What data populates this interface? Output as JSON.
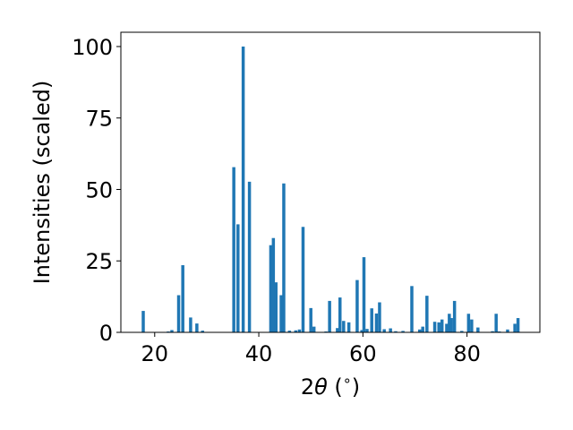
{
  "chart_data": {
    "type": "bar",
    "xlabel": "2θ (°)",
    "xlabel_parts": {
      "two": "2",
      "theta": "θ",
      "open": " (",
      "deg": "∘",
      "close": ")"
    },
    "ylabel": "Intensities (scaled)",
    "xlim": [
      13.5,
      94.0
    ],
    "ylim": [
      0,
      105
    ],
    "xticks": [
      {
        "value": 20,
        "label": "20"
      },
      {
        "value": 40,
        "label": "40"
      },
      {
        "value": 60,
        "label": "60"
      },
      {
        "value": 80,
        "label": "80"
      }
    ],
    "yticks": [
      {
        "value": 0,
        "label": "0"
      },
      {
        "value": 25,
        "label": "25"
      },
      {
        "value": 50,
        "label": "50"
      },
      {
        "value": 75,
        "label": "75"
      },
      {
        "value": 100,
        "label": "100"
      }
    ],
    "bar_width": 0.6,
    "bar_color": "#1f77b4",
    "grid": false,
    "x": [
      17.8,
      22.6,
      23.3,
      24.6,
      25.4,
      26.9,
      28.1,
      29.2,
      35.2,
      36.0,
      37.0,
      38.2,
      42.3,
      42.8,
      43.3,
      44.3,
      44.8,
      45.9,
      47.1,
      47.8,
      48.5,
      50.0,
      50.6,
      52.9,
      53.6,
      55.1,
      55.6,
      56.3,
      57.3,
      58.9,
      59.8,
      60.2,
      60.8,
      61.7,
      62.6,
      63.2,
      64.1,
      65.3,
      66.3,
      67.7,
      69.4,
      70.9,
      71.5,
      72.3,
      73.8,
      74.6,
      75.2,
      76.1,
      76.6,
      77.0,
      77.6,
      79.0,
      80.3,
      80.9,
      82.1,
      84.9,
      85.6,
      86.2,
      87.8,
      89.2,
      89.8
    ],
    "values": [
      7.5,
      0.3,
      0.8,
      13.0,
      23.5,
      5.2,
      3.1,
      0.6,
      57.8,
      37.8,
      100.0,
      52.7,
      30.5,
      33.0,
      17.5,
      13.0,
      52.1,
      0.6,
      0.7,
      1.0,
      36.9,
      8.5,
      2.0,
      0.3,
      11.0,
      1.5,
      12.2,
      4.0,
      3.5,
      18.3,
      0.8,
      26.3,
      1.2,
      8.4,
      6.6,
      10.5,
      1.1,
      1.4,
      0.4,
      0.5,
      16.2,
      1.0,
      2.0,
      12.8,
      3.7,
      3.5,
      4.5,
      3.0,
      6.5,
      5.0,
      11.0,
      0.5,
      6.5,
      4.5,
      1.7,
      0.4,
      6.5,
      0.3,
      1.0,
      3.0,
      5.0
    ]
  }
}
